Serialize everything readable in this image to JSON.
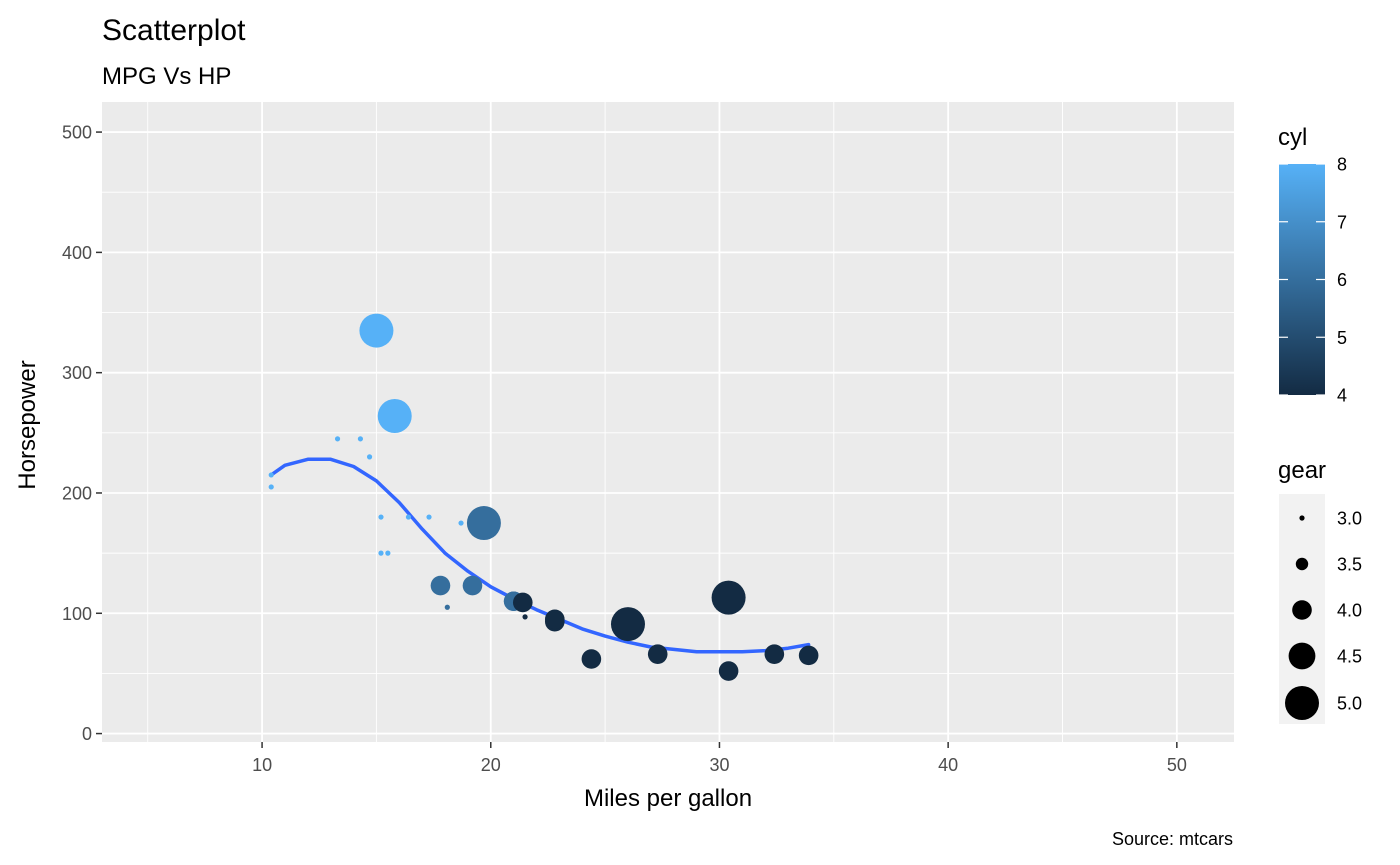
{
  "chart_data": {
    "type": "scatter",
    "title": "Scatterplot",
    "subtitle": "MPG Vs HP",
    "xlabel": "Miles per gallon",
    "ylabel": "Horsepower",
    "caption": "Source: mtcars",
    "xlim": [
      3,
      52.5
    ],
    "ylim": [
      -7,
      525
    ],
    "x_ticks": [
      10,
      20,
      30,
      40,
      50
    ],
    "y_ticks": [
      0,
      100,
      200,
      300,
      400,
      500
    ],
    "x_tick_labels": [
      "10",
      "20",
      "30",
      "40",
      "50"
    ],
    "y_tick_labels": [
      "0",
      "100",
      "200",
      "300",
      "400",
      "500"
    ],
    "grid": true,
    "background": "#ebebeb",
    "color_legend": {
      "title": "cyl",
      "ticks": [
        4,
        5,
        6,
        7,
        8
      ],
      "tick_labels": [
        "4",
        "5",
        "6",
        "7",
        "8"
      ],
      "low_color": "#132b43",
      "high_color": "#56b1f7",
      "range": [
        4,
        8
      ]
    },
    "size_legend": {
      "title": "gear",
      "values": [
        3.0,
        3.5,
        4.0,
        4.5,
        5.0
      ],
      "labels": [
        "3.0",
        "3.5",
        "4.0",
        "4.5",
        "5.0"
      ]
    },
    "points": [
      {
        "x": 21.0,
        "y": 110,
        "cyl": 6,
        "gear": 4
      },
      {
        "x": 21.0,
        "y": 110,
        "cyl": 6,
        "gear": 4
      },
      {
        "x": 22.8,
        "y": 93,
        "cyl": 4,
        "gear": 4
      },
      {
        "x": 21.4,
        "y": 110,
        "cyl": 6,
        "gear": 3
      },
      {
        "x": 18.7,
        "y": 175,
        "cyl": 8,
        "gear": 3
      },
      {
        "x": 18.1,
        "y": 105,
        "cyl": 6,
        "gear": 3
      },
      {
        "x": 14.3,
        "y": 245,
        "cyl": 8,
        "gear": 3
      },
      {
        "x": 24.4,
        "y": 62,
        "cyl": 4,
        "gear": 4
      },
      {
        "x": 22.8,
        "y": 95,
        "cyl": 4,
        "gear": 4
      },
      {
        "x": 19.2,
        "y": 123,
        "cyl": 6,
        "gear": 4
      },
      {
        "x": 17.8,
        "y": 123,
        "cyl": 6,
        "gear": 4
      },
      {
        "x": 16.4,
        "y": 180,
        "cyl": 8,
        "gear": 3
      },
      {
        "x": 17.3,
        "y": 180,
        "cyl": 8,
        "gear": 3
      },
      {
        "x": 15.2,
        "y": 180,
        "cyl": 8,
        "gear": 3
      },
      {
        "x": 10.4,
        "y": 205,
        "cyl": 8,
        "gear": 3
      },
      {
        "x": 10.4,
        "y": 215,
        "cyl": 8,
        "gear": 3
      },
      {
        "x": 14.7,
        "y": 230,
        "cyl": 8,
        "gear": 3
      },
      {
        "x": 32.4,
        "y": 66,
        "cyl": 4,
        "gear": 4
      },
      {
        "x": 30.4,
        "y": 52,
        "cyl": 4,
        "gear": 4
      },
      {
        "x": 33.9,
        "y": 65,
        "cyl": 4,
        "gear": 4
      },
      {
        "x": 21.5,
        "y": 97,
        "cyl": 4,
        "gear": 3
      },
      {
        "x": 15.5,
        "y": 150,
        "cyl": 8,
        "gear": 3
      },
      {
        "x": 15.2,
        "y": 150,
        "cyl": 8,
        "gear": 3
      },
      {
        "x": 13.3,
        "y": 245,
        "cyl": 8,
        "gear": 3
      },
      {
        "x": 19.2,
        "y": 175,
        "cyl": 8,
        "gear": 3
      },
      {
        "x": 27.3,
        "y": 66,
        "cyl": 4,
        "gear": 4
      },
      {
        "x": 26.0,
        "y": 91,
        "cyl": 4,
        "gear": 5
      },
      {
        "x": 30.4,
        "y": 113,
        "cyl": 4,
        "gear": 5
      },
      {
        "x": 15.8,
        "y": 264,
        "cyl": 8,
        "gear": 5
      },
      {
        "x": 19.7,
        "y": 175,
        "cyl": 6,
        "gear": 5
      },
      {
        "x": 15.0,
        "y": 335,
        "cyl": 8,
        "gear": 5
      },
      {
        "x": 21.4,
        "y": 109,
        "cyl": 4,
        "gear": 4
      }
    ],
    "smooth_line": {
      "color": "#3366ff",
      "x": [
        10.4,
        11.0,
        12.0,
        13.0,
        14.0,
        15.0,
        16.0,
        17.0,
        18.0,
        19.0,
        20.0,
        21.0,
        22.0,
        23.0,
        24.0,
        25.0,
        26.0,
        27.0,
        28.0,
        29.0,
        30.0,
        31.0,
        32.0,
        33.0,
        33.9
      ],
      "y": [
        215,
        223,
        228,
        228,
        222,
        210,
        192,
        170,
        150,
        135,
        122,
        112,
        103,
        95,
        87,
        81,
        76,
        72,
        70,
        68,
        68,
        68,
        69,
        71,
        74
      ]
    }
  }
}
